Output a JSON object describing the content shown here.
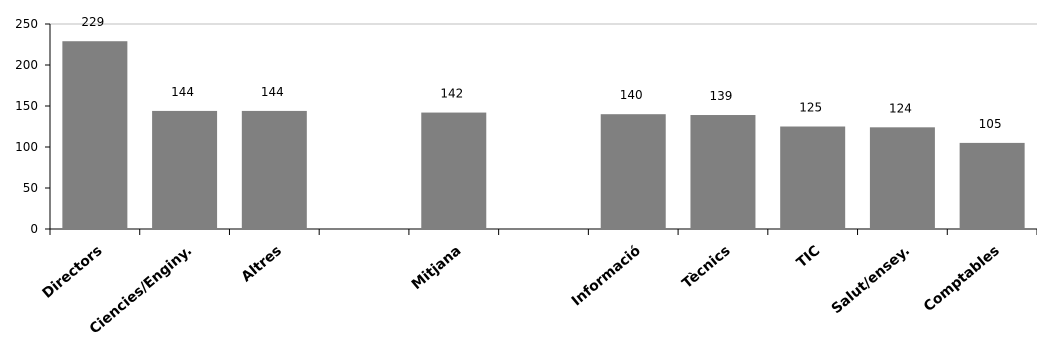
{
  "chart_data": {
    "type": "bar",
    "categories": [
      "Directors",
      "Ciencies/Enginy.",
      "Altres",
      "",
      "Mitjana",
      "",
      "Informació",
      "Tècnics",
      "TIC",
      "Salut/ensey.",
      "Comptables"
    ],
    "values": [
      229,
      144,
      144,
      null,
      142,
      null,
      140,
      139,
      125,
      124,
      105
    ],
    "data_labels": [
      "229",
      "144",
      "144",
      "",
      "142",
      "",
      "140",
      "139",
      "125",
      "124",
      "105"
    ],
    "ylim": [
      0,
      250
    ],
    "yticks": [
      0,
      50,
      100,
      150,
      200,
      250
    ],
    "title": "",
    "xlabel": "",
    "ylabel": "",
    "grid": false,
    "colors": {
      "bar": "#808080",
      "axis": "#000000",
      "top_line": "#bfbfbf"
    }
  }
}
